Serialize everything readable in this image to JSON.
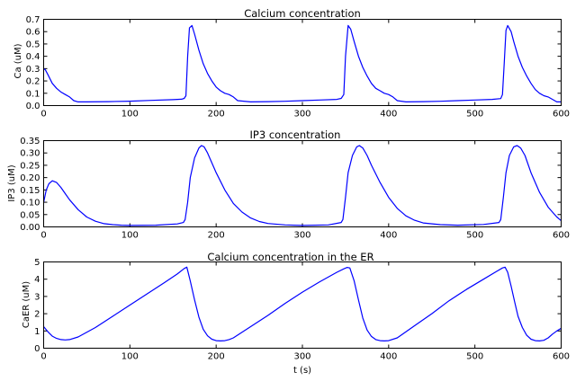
{
  "chart_data": [
    {
      "type": "line",
      "title": "Calcium concentration",
      "xlabel": "",
      "ylabel": "Ca (uM)",
      "xlim": [
        0,
        600
      ],
      "ylim": [
        0,
        0.7
      ],
      "xticks": [
        0,
        100,
        200,
        300,
        400,
        500,
        600
      ],
      "xtick_labels": [
        "0",
        "100",
        "200",
        "300",
        "400",
        "500",
        "600"
      ],
      "yticks": [
        0.0,
        0.1,
        0.2,
        0.3,
        0.4,
        0.5,
        0.6,
        0.7
      ],
      "ytick_labels": [
        "0.0",
        "0.1",
        "0.2",
        "0.3",
        "0.4",
        "0.5",
        "0.6",
        "0.7"
      ],
      "grid": false,
      "legend": "none",
      "series": [
        {
          "color": "#0000ff",
          "x": [
            0,
            2,
            5,
            10,
            15,
            20,
            25,
            30,
            35,
            40,
            50,
            75,
            100,
            125,
            150,
            160,
            163,
            165,
            167,
            169,
            172,
            175,
            180,
            185,
            190,
            195,
            200,
            205,
            210,
            215,
            220,
            225,
            240,
            260,
            280,
            300,
            320,
            340,
            345,
            348,
            350,
            353,
            356,
            360,
            365,
            370,
            375,
            380,
            385,
            390,
            395,
            400,
            405,
            410,
            420,
            440,
            460,
            480,
            500,
            520,
            530,
            532,
            534,
            536,
            538,
            542,
            545,
            550,
            555,
            560,
            565,
            570,
            575,
            580,
            585,
            590,
            595,
            600
          ],
          "y": [
            0.3,
            0.29,
            0.25,
            0.18,
            0.14,
            0.11,
            0.09,
            0.07,
            0.04,
            0.03,
            0.03,
            0.032,
            0.036,
            0.042,
            0.048,
            0.052,
            0.058,
            0.08,
            0.4,
            0.63,
            0.65,
            0.58,
            0.45,
            0.34,
            0.26,
            0.2,
            0.15,
            0.12,
            0.1,
            0.09,
            0.07,
            0.04,
            0.03,
            0.032,
            0.035,
            0.04,
            0.045,
            0.05,
            0.058,
            0.09,
            0.4,
            0.65,
            0.62,
            0.52,
            0.4,
            0.31,
            0.24,
            0.18,
            0.14,
            0.12,
            0.1,
            0.09,
            0.07,
            0.04,
            0.03,
            0.032,
            0.035,
            0.04,
            0.045,
            0.05,
            0.057,
            0.09,
            0.35,
            0.61,
            0.65,
            0.6,
            0.52,
            0.4,
            0.31,
            0.24,
            0.18,
            0.13,
            0.1,
            0.08,
            0.07,
            0.05,
            0.03,
            0.03
          ]
        }
      ]
    },
    {
      "type": "line",
      "title": "IP3 concentration",
      "xlabel": "",
      "ylabel": "IP3 (uM)",
      "xlim": [
        0,
        600
      ],
      "ylim": [
        0,
        0.35
      ],
      "xticks": [
        0,
        100,
        200,
        300,
        400,
        500,
        600
      ],
      "xtick_labels": [
        "0",
        "100",
        "200",
        "300",
        "400",
        "500",
        "600"
      ],
      "yticks": [
        0.0,
        0.05,
        0.1,
        0.15,
        0.2,
        0.25,
        0.3,
        0.35
      ],
      "ytick_labels": [
        "0.00",
        "0.05",
        "0.10",
        "0.15",
        "0.20",
        "0.25",
        "0.30",
        "0.35"
      ],
      "grid": false,
      "legend": "none",
      "series": [
        {
          "color": "#0000ff",
          "x": [
            0,
            3,
            6,
            10,
            15,
            20,
            25,
            30,
            40,
            50,
            60,
            70,
            80,
            90,
            100,
            130,
            155,
            162,
            164,
            167,
            170,
            175,
            180,
            183,
            186,
            190,
            195,
            200,
            210,
            220,
            230,
            240,
            250,
            260,
            280,
            300,
            330,
            345,
            347,
            350,
            353,
            358,
            363,
            366,
            370,
            375,
            380,
            390,
            400,
            410,
            420,
            430,
            440,
            460,
            480,
            510,
            528,
            530,
            533,
            536,
            540,
            545,
            549,
            553,
            558,
            565,
            575,
            585,
            595,
            600
          ],
          "y": [
            0.1,
            0.15,
            0.175,
            0.187,
            0.18,
            0.16,
            0.135,
            0.11,
            0.07,
            0.04,
            0.023,
            0.013,
            0.009,
            0.007,
            0.006,
            0.007,
            0.012,
            0.018,
            0.03,
            0.1,
            0.2,
            0.28,
            0.32,
            0.33,
            0.325,
            0.3,
            0.26,
            0.22,
            0.15,
            0.095,
            0.06,
            0.036,
            0.022,
            0.014,
            0.008,
            0.006,
            0.008,
            0.018,
            0.03,
            0.12,
            0.22,
            0.29,
            0.325,
            0.33,
            0.32,
            0.29,
            0.25,
            0.18,
            0.12,
            0.075,
            0.045,
            0.027,
            0.016,
            0.009,
            0.007,
            0.01,
            0.018,
            0.03,
            0.12,
            0.22,
            0.29,
            0.325,
            0.33,
            0.32,
            0.29,
            0.22,
            0.14,
            0.08,
            0.04,
            0.025
          ]
        }
      ]
    },
    {
      "type": "line",
      "title": "Calcium concentration in the ER",
      "xlabel": "t (s)",
      "ylabel": "CaER (uM)",
      "xlim": [
        0,
        600
      ],
      "ylim": [
        0,
        5
      ],
      "xticks": [
        0,
        100,
        200,
        300,
        400,
        500,
        600
      ],
      "xtick_labels": [
        "0",
        "100",
        "200",
        "300",
        "400",
        "500",
        "600"
      ],
      "yticks": [
        0,
        1,
        2,
        3,
        4,
        5
      ],
      "ytick_labels": [
        "0",
        "1",
        "2",
        "3",
        "4",
        "5"
      ],
      "grid": false,
      "legend": "none",
      "series": [
        {
          "color": "#0000ff",
          "x": [
            0,
            5,
            10,
            15,
            20,
            25,
            30,
            40,
            60,
            80,
            100,
            120,
            140,
            155,
            163,
            166,
            170,
            175,
            180,
            185,
            190,
            195,
            200,
            205,
            210,
            215,
            220,
            240,
            260,
            280,
            300,
            320,
            340,
            348,
            352,
            355,
            360,
            365,
            370,
            375,
            380,
            385,
            390,
            395,
            400,
            410,
            430,
            450,
            470,
            490,
            510,
            525,
            532,
            535,
            538,
            542,
            546,
            550,
            555,
            560,
            565,
            570,
            575,
            580,
            585,
            590,
            595,
            600
          ],
          "y": [
            1.25,
            0.95,
            0.7,
            0.57,
            0.5,
            0.48,
            0.5,
            0.65,
            1.2,
            1.85,
            2.5,
            3.15,
            3.8,
            4.3,
            4.62,
            4.7,
            3.9,
            2.8,
            1.8,
            1.1,
            0.72,
            0.52,
            0.44,
            0.42,
            0.44,
            0.5,
            0.6,
            1.25,
            1.9,
            2.6,
            3.25,
            3.85,
            4.4,
            4.6,
            4.68,
            4.65,
            3.9,
            2.8,
            1.75,
            1.05,
            0.68,
            0.5,
            0.44,
            0.42,
            0.44,
            0.6,
            1.3,
            2.0,
            2.75,
            3.4,
            4.0,
            4.45,
            4.65,
            4.7,
            4.4,
            3.6,
            2.7,
            1.85,
            1.2,
            0.75,
            0.52,
            0.44,
            0.42,
            0.46,
            0.6,
            0.82,
            1.0,
            1.15
          ]
        }
      ]
    }
  ]
}
